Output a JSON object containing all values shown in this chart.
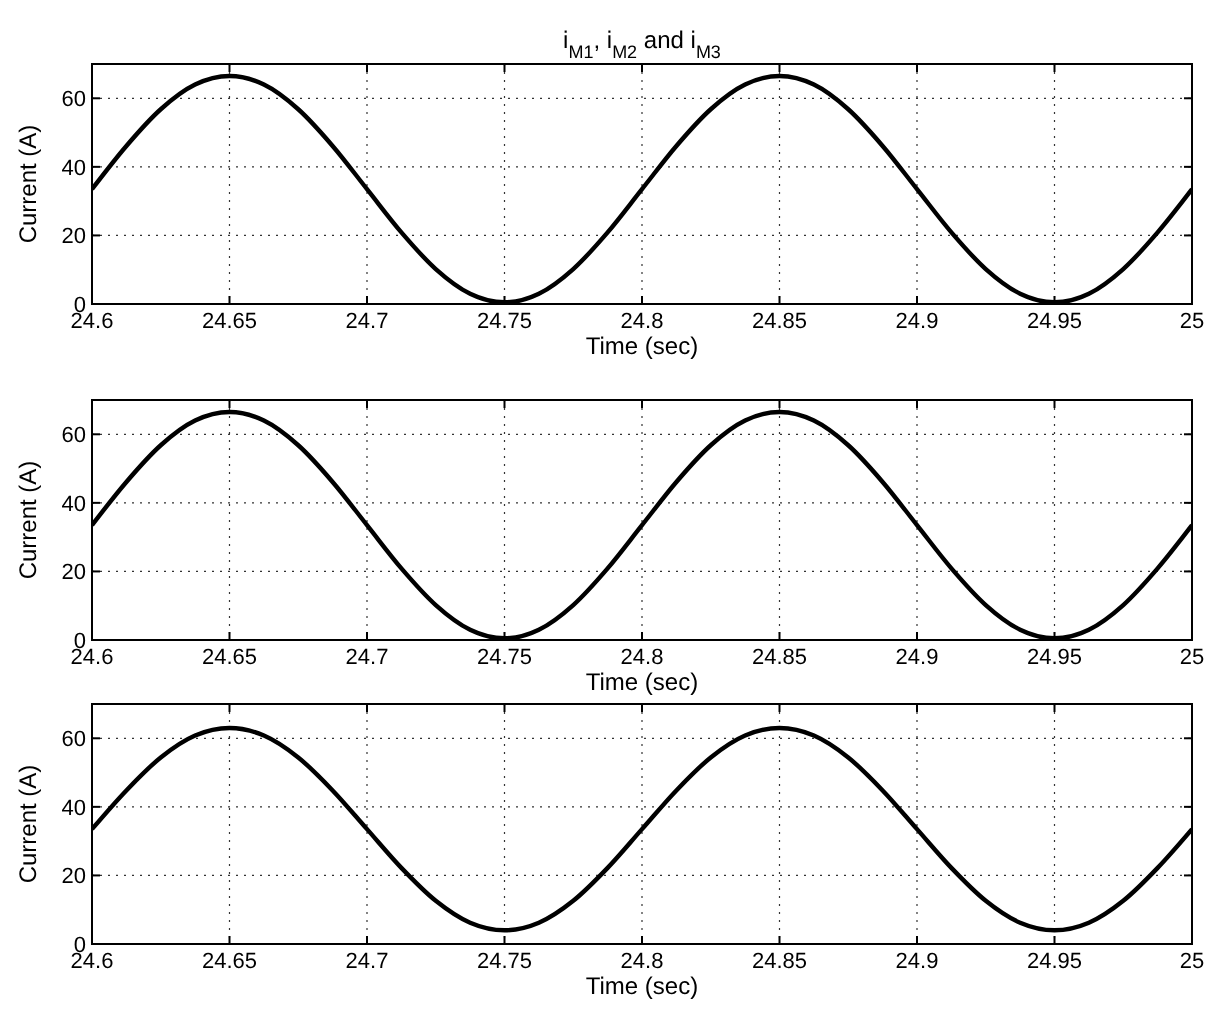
{
  "chart_data": [
    {
      "type": "line",
      "title": "i$_{M1}$, i$_{M2}$ and i$_{M3}$",
      "xlabel": "Time (sec)",
      "ylabel": "Current (A)",
      "xlim": [
        24.6,
        25
      ],
      "xticks": [
        24.6,
        24.65,
        24.7,
        24.75,
        24.8,
        24.85,
        24.9,
        24.95,
        25
      ],
      "ylim": [
        0,
        70
      ],
      "yticks": [
        0,
        20,
        40,
        60
      ],
      "grid": true,
      "line_style": "solid",
      "x": [
        24.6,
        24.6125,
        24.625,
        24.6375,
        24.65,
        24.6625,
        24.675,
        24.6875,
        24.7,
        24.7125,
        24.725,
        24.7375,
        24.75,
        24.7625,
        24.775,
        24.7875,
        24.8,
        24.8125,
        24.825,
        24.8375,
        24.85,
        24.8625,
        24.875,
        24.8875,
        24.9,
        24.9125,
        24.925,
        24.9375,
        24.95,
        24.9625,
        24.975,
        24.9875,
        25
      ],
      "series": [
        {
          "color": "#000000",
          "values": [
            33.5,
            46.1,
            56.8,
            64.0,
            66.5,
            64.0,
            56.8,
            46.1,
            33.5,
            20.9,
            10.2,
            3.0,
            0.5,
            3.0,
            10.2,
            20.9,
            33.5,
            46.1,
            56.8,
            64.0,
            66.5,
            64.0,
            56.8,
            46.1,
            33.5,
            20.9,
            10.2,
            3.0,
            0.5,
            3.0,
            10.2,
            20.9,
            33.5
          ]
        }
      ]
    },
    {
      "type": "line",
      "xlabel": "Time (sec)",
      "ylabel": "Current (A)",
      "xlim": [
        24.6,
        25
      ],
      "xticks": [
        24.6,
        24.65,
        24.7,
        24.75,
        24.8,
        24.85,
        24.9,
        24.95,
        25
      ],
      "ylim": [
        0,
        70
      ],
      "yticks": [
        0,
        20,
        40,
        60
      ],
      "grid": true,
      "line_style": "solid",
      "x": [
        24.6,
        24.6125,
        24.625,
        24.6375,
        24.65,
        24.6625,
        24.675,
        24.6875,
        24.7,
        24.7125,
        24.725,
        24.7375,
        24.75,
        24.7625,
        24.775,
        24.7875,
        24.8,
        24.8125,
        24.825,
        24.8375,
        24.85,
        24.8625,
        24.875,
        24.8875,
        24.9,
        24.9125,
        24.925,
        24.9375,
        24.95,
        24.9625,
        24.975,
        24.9875,
        25
      ],
      "series": [
        {
          "color": "#000000",
          "values": [
            33.5,
            46.1,
            56.8,
            64.0,
            66.5,
            64.0,
            56.8,
            46.1,
            33.5,
            20.9,
            10.2,
            3.0,
            0.5,
            3.0,
            10.2,
            20.9,
            33.5,
            46.1,
            56.8,
            64.0,
            66.5,
            64.0,
            56.8,
            46.1,
            33.5,
            20.9,
            10.2,
            3.0,
            0.5,
            3.0,
            10.2,
            20.9,
            33.5
          ]
        }
      ]
    },
    {
      "type": "line",
      "xlabel": "Time (sec)",
      "ylabel": "Current (A)",
      "xlim": [
        24.6,
        25
      ],
      "xticks": [
        24.6,
        24.65,
        24.7,
        24.75,
        24.8,
        24.85,
        24.9,
        24.95,
        25
      ],
      "ylim": [
        0,
        70
      ],
      "yticks": [
        0,
        20,
        40,
        60
      ],
      "grid": true,
      "line_style": "solid",
      "x": [
        24.6,
        24.6125,
        24.625,
        24.6375,
        24.65,
        24.6625,
        24.675,
        24.6875,
        24.7,
        24.7125,
        24.725,
        24.7375,
        24.75,
        24.7625,
        24.775,
        24.7875,
        24.8,
        24.8125,
        24.825,
        24.8375,
        24.85,
        24.8625,
        24.875,
        24.8875,
        24.9,
        24.9125,
        24.925,
        24.9375,
        24.95,
        24.9625,
        24.975,
        24.9875,
        25
      ],
      "series": [
        {
          "color": "#000000",
          "values": [
            33.5,
            44.8,
            54.4,
            60.8,
            63.0,
            60.8,
            54.4,
            44.8,
            33.5,
            22.2,
            12.6,
            6.2,
            4.0,
            6.2,
            12.6,
            22.2,
            33.5,
            44.8,
            54.4,
            60.8,
            63.0,
            60.8,
            54.4,
            44.8,
            33.5,
            22.2,
            12.6,
            6.2,
            4.0,
            6.2,
            12.6,
            22.2,
            33.5
          ]
        }
      ]
    }
  ]
}
